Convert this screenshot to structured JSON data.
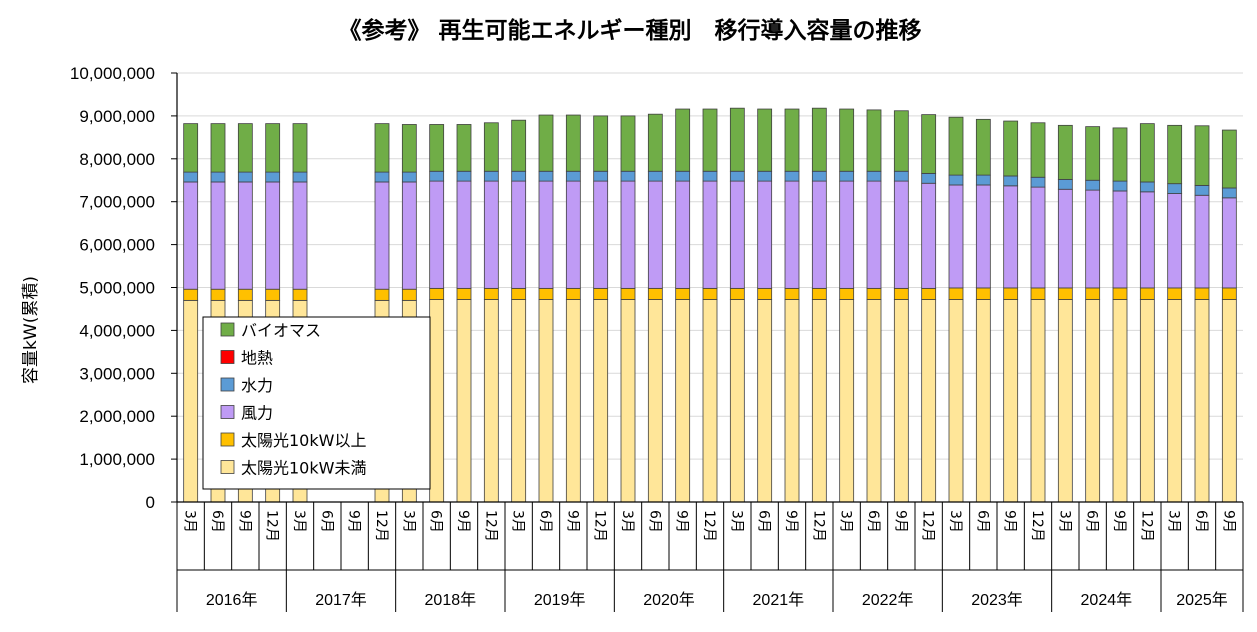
{
  "chart_data": {
    "type": "bar",
    "stacked": true,
    "title": "《参考》 再生可能エネルギー種別　移行導入容量の推移",
    "ylabel": "容量kW(累積)",
    "xlabel": "",
    "ylim": [
      0,
      10000000
    ],
    "yticks": [
      0,
      1000000,
      2000000,
      3000000,
      4000000,
      5000000,
      6000000,
      7000000,
      8000000,
      9000000,
      10000000
    ],
    "ytick_labels": [
      "0",
      "1,000,000",
      "2,000,000",
      "3,000,000",
      "4,000,000",
      "5,000,000",
      "6,000,000",
      "7,000,000",
      "8,000,000",
      "9,000,000",
      "10,000,000"
    ],
    "month_labels": [
      "3月",
      "6月",
      "9月",
      "12月",
      "3月",
      "6月",
      "9月",
      "12月",
      "3月",
      "6月",
      "9月",
      "12月",
      "3月",
      "6月",
      "9月",
      "12月",
      "3月",
      "6月",
      "9月",
      "12月",
      "3月",
      "6月",
      "9月",
      "12月",
      "3月",
      "6月",
      "9月",
      "12月",
      "3月",
      "6月",
      "9月",
      "12月",
      "3月",
      "6月",
      "9月",
      "12月",
      "3月",
      "6月",
      "9月"
    ],
    "year_groups": [
      {
        "label": "2016年",
        "count": 4
      },
      {
        "label": "2017年",
        "count": 4
      },
      {
        "label": "2018年",
        "count": 4
      },
      {
        "label": "2019年",
        "count": 4
      },
      {
        "label": "2020年",
        "count": 4
      },
      {
        "label": "2021年",
        "count": 4
      },
      {
        "label": "2022年",
        "count": 4
      },
      {
        "label": "2023年",
        "count": 4
      },
      {
        "label": "2024年",
        "count": 4
      },
      {
        "label": "2025年",
        "count": 3
      }
    ],
    "legend_position": "lower-left inside",
    "series": [
      {
        "name": "太陽光10kW未満",
        "color": "#FFE699",
        "values": [
          4700000,
          4700000,
          4700000,
          4700000,
          4700000,
          null,
          null,
          4700000,
          4700000,
          4720000,
          4720000,
          4720000,
          4720000,
          4720000,
          4720000,
          4720000,
          4720000,
          4720000,
          4720000,
          4720000,
          4720000,
          4720000,
          4720000,
          4720000,
          4720000,
          4720000,
          4720000,
          4720000,
          4720000,
          4720000,
          4720000,
          4720000,
          4720000,
          4720000,
          4720000,
          4720000,
          4720000,
          4720000,
          4720000
        ]
      },
      {
        "name": "太陽光10kW以上",
        "color": "#FFC000",
        "values": [
          260000,
          260000,
          260000,
          260000,
          260000,
          null,
          null,
          260000,
          260000,
          260000,
          260000,
          260000,
          260000,
          260000,
          260000,
          260000,
          260000,
          260000,
          260000,
          260000,
          260000,
          260000,
          260000,
          260000,
          260000,
          260000,
          260000,
          260000,
          270000,
          270000,
          270000,
          270000,
          270000,
          270000,
          270000,
          270000,
          270000,
          270000,
          270000
        ]
      },
      {
        "name": "風力",
        "color": "#BF9BF5",
        "values": [
          2500000,
          2500000,
          2500000,
          2500000,
          2500000,
          null,
          null,
          2500000,
          2500000,
          2500000,
          2500000,
          2500000,
          2500000,
          2500000,
          2500000,
          2500000,
          2500000,
          2500000,
          2500000,
          2500000,
          2500000,
          2500000,
          2500000,
          2500000,
          2500000,
          2500000,
          2500000,
          2450000,
          2400000,
          2400000,
          2380000,
          2350000,
          2300000,
          2280000,
          2260000,
          2240000,
          2200000,
          2160000,
          2100000
        ]
      },
      {
        "name": "水力",
        "color": "#5B9BD5",
        "values": [
          230000,
          230000,
          230000,
          230000,
          230000,
          null,
          null,
          230000,
          230000,
          230000,
          230000,
          230000,
          230000,
          230000,
          230000,
          230000,
          230000,
          230000,
          230000,
          230000,
          230000,
          230000,
          230000,
          230000,
          230000,
          230000,
          230000,
          230000,
          230000,
          230000,
          230000,
          230000,
          230000,
          230000,
          230000,
          230000,
          230000,
          230000,
          230000
        ]
      },
      {
        "name": "地熱",
        "color": "#FF0000",
        "values": [
          0,
          0,
          0,
          0,
          0,
          null,
          null,
          0,
          0,
          0,
          0,
          0,
          0,
          0,
          0,
          0,
          0,
          0,
          0,
          0,
          0,
          0,
          0,
          0,
          0,
          0,
          0,
          0,
          0,
          0,
          0,
          0,
          0,
          0,
          0,
          0,
          0,
          0,
          0
        ]
      },
      {
        "name": "バイオマス",
        "color": "#70AD47",
        "values": [
          1130000,
          1130000,
          1130000,
          1130000,
          1130000,
          null,
          null,
          1130000,
          1110000,
          1090000,
          1090000,
          1130000,
          1190000,
          1310000,
          1310000,
          1290000,
          1290000,
          1330000,
          1450000,
          1450000,
          1470000,
          1450000,
          1450000,
          1470000,
          1450000,
          1430000,
          1410000,
          1370000,
          1350000,
          1300000,
          1280000,
          1270000,
          1260000,
          1250000,
          1240000,
          1360000,
          1360000,
          1390000,
          1350000
        ]
      }
    ]
  }
}
